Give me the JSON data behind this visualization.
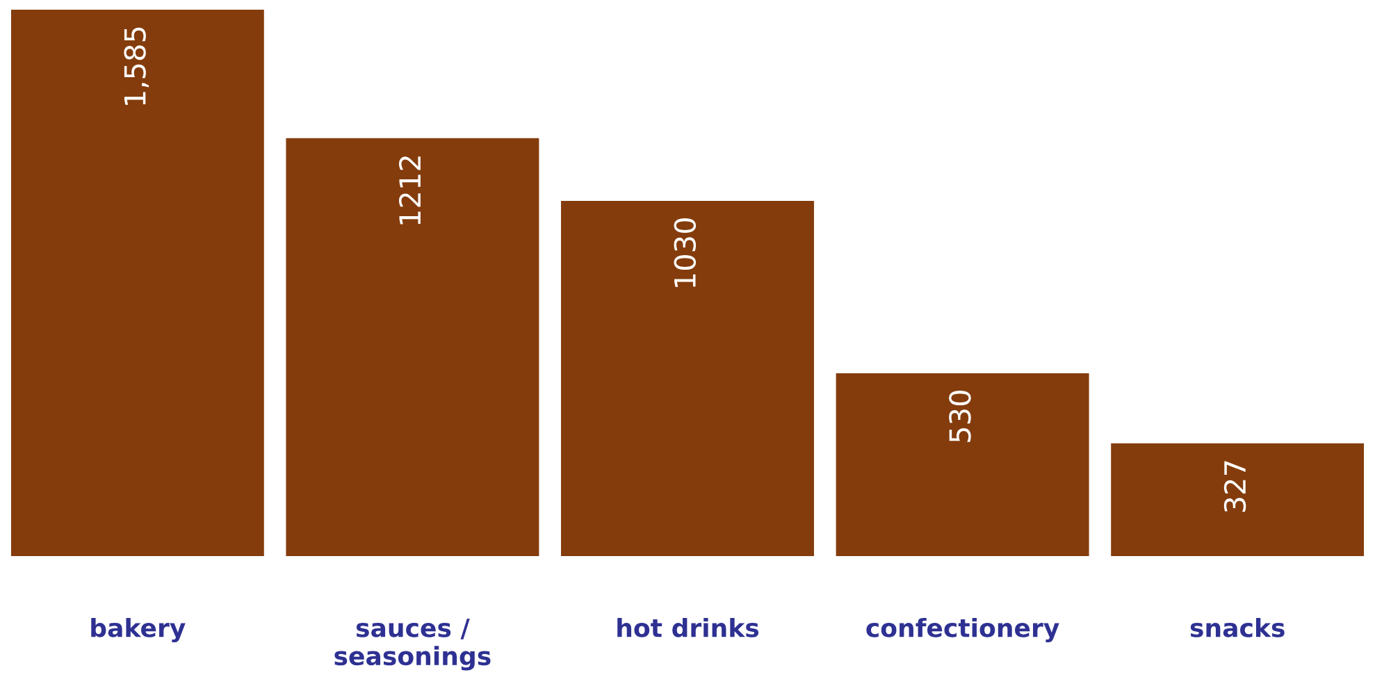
{
  "chart_data": {
    "type": "bar",
    "categories": [
      "bakery",
      "sauces /\nseasonings",
      "hot drinks",
      "confectionery",
      "snacks"
    ],
    "values": [
      1585,
      1212,
      1030,
      530,
      327
    ],
    "value_labels": [
      "1,585",
      "1212",
      "1030",
      "530",
      "327"
    ],
    "color": "#843c0c"
  }
}
